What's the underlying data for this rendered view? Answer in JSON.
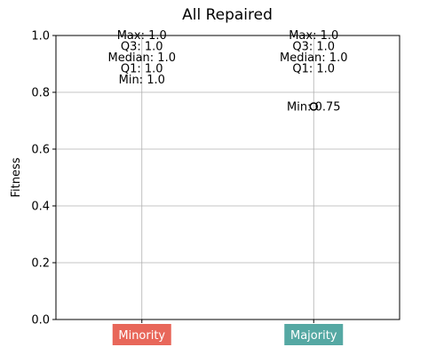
{
  "chart_data": {
    "type": "box",
    "title": "All Repaired",
    "xlabel": "",
    "ylabel": "Fitness",
    "ylim": [
      0,
      1.0
    ],
    "yticks": [
      "0.0",
      "0.2",
      "0.4",
      "0.6",
      "0.8",
      "1.0"
    ],
    "grid": true,
    "categories": [
      {
        "name": "Minority",
        "color": "#e8675a",
        "stats": {
          "max": 1.0,
          "q3": 1.0,
          "median": 1.0,
          "q1": 1.0,
          "min": 1.0
        },
        "labels": [
          "Max: 1.0",
          "Q3: 1.0",
          "Median: 1.0",
          "Q1: 1.0",
          "Min: 1.0"
        ],
        "outliers": [],
        "outlier_labels": []
      },
      {
        "name": "Majority",
        "color": "#55a8a3",
        "stats": {
          "max": 1.0,
          "q3": 1.0,
          "median": 1.0,
          "q1": 1.0,
          "min": 0.75
        },
        "labels": [
          "Max: 1.0",
          "Q3: 1.0",
          "Median: 1.0",
          "Q1: 1.0"
        ],
        "outliers": [
          0.75
        ],
        "outlier_labels": [
          "Min: 0.75"
        ]
      }
    ]
  }
}
